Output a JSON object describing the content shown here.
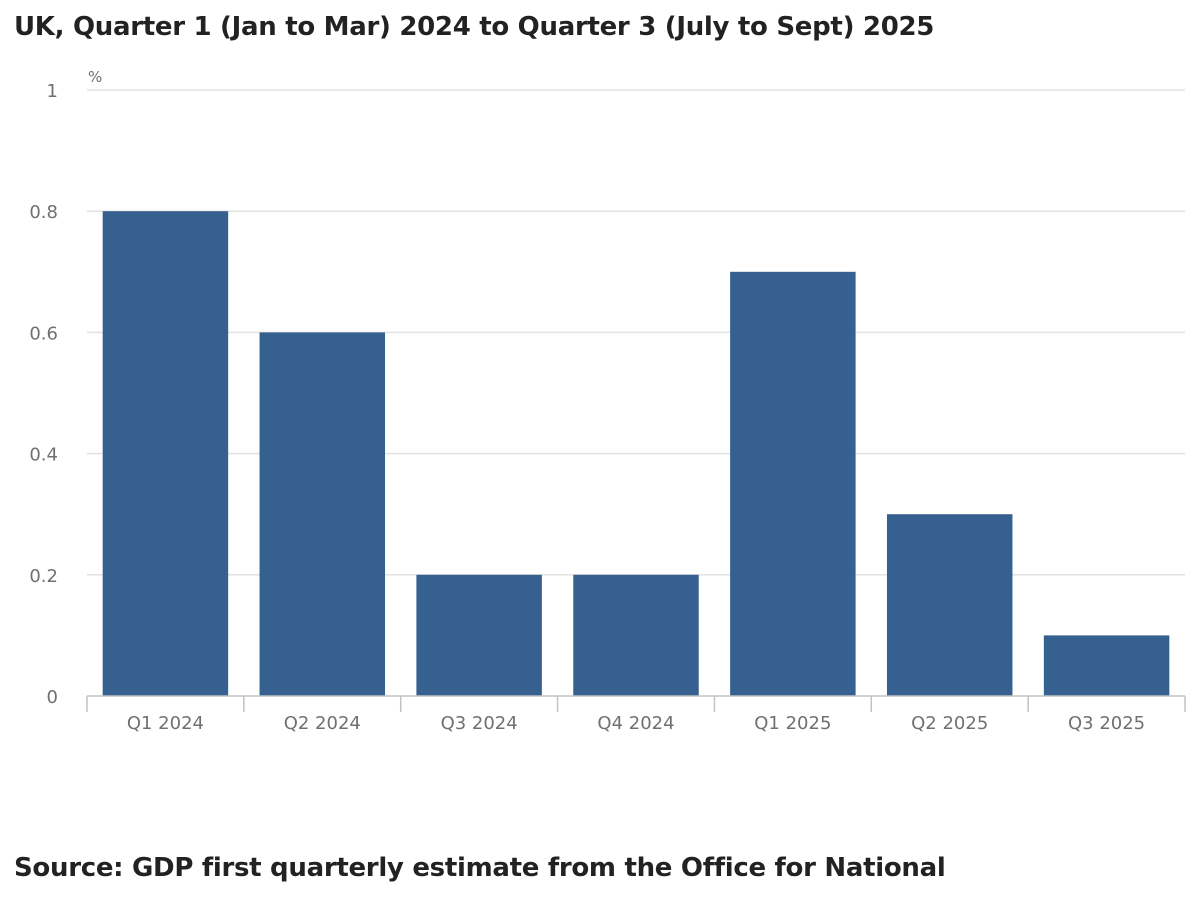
{
  "title": "UK, Quarter 1 (Jan to Mar) 2024 to Quarter 3 (July to Sept) 2025",
  "source": "Source: GDP first quarterly estimate from the Office for National",
  "chart_data": {
    "type": "bar",
    "categories": [
      "Q1 2024",
      "Q2 2024",
      "Q3 2024",
      "Q4 2024",
      "Q1 2025",
      "Q2 2025",
      "Q3 2025"
    ],
    "values": [
      0.8,
      0.6,
      0.2,
      0.2,
      0.7,
      0.3,
      0.1
    ],
    "yunit": "%",
    "ylim": [
      0,
      1
    ],
    "yticks": [
      0,
      0.2,
      0.4,
      0.6,
      0.8,
      1
    ],
    "ytick_labels": [
      "0",
      "0.2",
      "0.4",
      "0.6",
      "0.8",
      "1"
    ],
    "grid": true,
    "legend": "none",
    "colors": {
      "bar": "#35608f",
      "grid": "#e2e2e2",
      "axis": "#c2c2c2",
      "tick_text": "#707070"
    }
  }
}
